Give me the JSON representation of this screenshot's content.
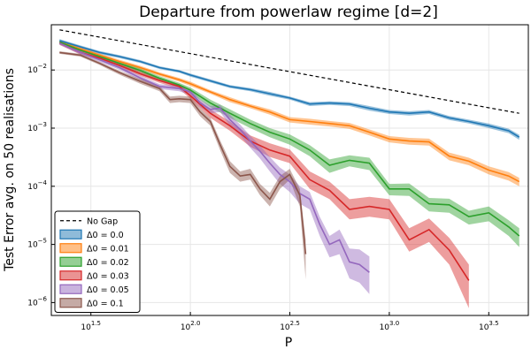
{
  "chart_data": {
    "type": "line",
    "title": "Departure from powerlaw regime [d=2]",
    "xlabel": "P",
    "ylabel": "Test Error avg. on 50 realisations",
    "x_scale": "log10",
    "y_scale": "log10",
    "xlim": [
      20,
      5000
    ],
    "ylim": [
      6e-07,
      0.06
    ],
    "x_ticks": [
      {
        "value": 31.6228,
        "base": "10",
        "exp": "1.5"
      },
      {
        "value": 100,
        "base": "10",
        "exp": "2.0"
      },
      {
        "value": 316.228,
        "base": "10",
        "exp": "2.5"
      },
      {
        "value": 1000,
        "base": "10",
        "exp": "3.0"
      },
      {
        "value": 3162.28,
        "base": "10",
        "exp": "3.5"
      }
    ],
    "y_ticks": [
      {
        "value": 1e-06,
        "base": "10",
        "exp": "−6"
      },
      {
        "value": 1e-05,
        "base": "10",
        "exp": "−5"
      },
      {
        "value": 0.0001,
        "base": "10",
        "exp": "−4"
      },
      {
        "value": 0.001,
        "base": "10",
        "exp": "−3"
      },
      {
        "value": 0.01,
        "base": "10",
        "exp": "−2"
      }
    ],
    "grid": true,
    "legend_position": "bottom-left",
    "reference_line": {
      "name": "No Gap",
      "style": "dashed",
      "color": "#000000",
      "x": [
        22,
        4500
      ],
      "values": [
        0.049,
        0.0018
      ]
    },
    "series": [
      {
        "name": "Δ0 = 0.0",
        "color": "#1f77b4",
        "x": [
          22,
          28,
          35,
          44,
          56,
          70,
          88,
          100,
          126,
          158,
          200,
          251,
          316,
          398,
          501,
          631,
          794,
          1000,
          1259,
          1585,
          2000,
          2512,
          3162,
          3981,
          4500
        ],
        "values": [
          0.032,
          0.025,
          0.02,
          0.017,
          0.014,
          0.011,
          0.0095,
          0.0082,
          0.0065,
          0.0052,
          0.0046,
          0.0039,
          0.0033,
          0.0026,
          0.0027,
          0.0026,
          0.0022,
          0.0019,
          0.0018,
          0.0019,
          0.0015,
          0.0013,
          0.0011,
          0.0009,
          0.0007
        ],
        "lower": [
          0.03,
          0.0235,
          0.0188,
          0.016,
          0.0132,
          0.0104,
          0.009,
          0.0077,
          0.0061,
          0.0049,
          0.0043,
          0.0036,
          0.0031,
          0.0024,
          0.0025,
          0.0024,
          0.002,
          0.00175,
          0.00165,
          0.00175,
          0.00138,
          0.0012,
          0.001,
          0.00082,
          0.00063
        ],
        "upper": [
          0.034,
          0.0265,
          0.0212,
          0.018,
          0.0148,
          0.0116,
          0.01,
          0.0087,
          0.0069,
          0.0055,
          0.0049,
          0.0042,
          0.0035,
          0.0028,
          0.0029,
          0.0028,
          0.0024,
          0.00205,
          0.00195,
          0.00205,
          0.00162,
          0.0014,
          0.0012,
          0.00098,
          0.00077
        ]
      },
      {
        "name": "Δ0 = 0.01",
        "color": "#ff7f0e",
        "x": [
          22,
          28,
          35,
          44,
          56,
          70,
          88,
          100,
          126,
          158,
          200,
          251,
          316,
          398,
          501,
          631,
          794,
          1000,
          1259,
          1585,
          2000,
          2512,
          3162,
          3981,
          4500
        ],
        "values": [
          0.03,
          0.023,
          0.018,
          0.014,
          0.011,
          0.0085,
          0.0068,
          0.0058,
          0.0042,
          0.0031,
          0.0024,
          0.0019,
          0.0014,
          0.0013,
          0.0012,
          0.0011,
          0.00085,
          0.00065,
          0.0006,
          0.00058,
          0.00033,
          0.00027,
          0.00019,
          0.00015,
          0.00012
        ],
        "lower": [
          0.028,
          0.0215,
          0.0168,
          0.013,
          0.0102,
          0.0079,
          0.0063,
          0.0053,
          0.0039,
          0.0028,
          0.0022,
          0.0017,
          0.00125,
          0.00115,
          0.00107,
          0.00097,
          0.00075,
          0.00057,
          0.00052,
          0.0005,
          0.00028,
          0.00023,
          0.00016,
          0.000125,
          0.0001
        ],
        "upper": [
          0.032,
          0.0245,
          0.0192,
          0.015,
          0.0118,
          0.0091,
          0.0073,
          0.0063,
          0.0045,
          0.0034,
          0.0026,
          0.0021,
          0.00155,
          0.00145,
          0.00133,
          0.00123,
          0.00095,
          0.00073,
          0.00068,
          0.00066,
          0.00038,
          0.00031,
          0.00022,
          0.000175,
          0.00014
        ]
      },
      {
        "name": "Δ0 = 0.02",
        "color": "#2ca02c",
        "x": [
          22,
          28,
          35,
          44,
          56,
          70,
          88,
          100,
          126,
          158,
          200,
          251,
          316,
          398,
          501,
          631,
          794,
          1000,
          1259,
          1585,
          2000,
          2512,
          3162,
          3981,
          4500
        ],
        "values": [
          0.03,
          0.022,
          0.017,
          0.013,
          0.0098,
          0.0072,
          0.0055,
          0.0045,
          0.0027,
          0.0018,
          0.0012,
          0.00085,
          0.00065,
          0.00042,
          0.00023,
          0.00028,
          0.00025,
          9e-05,
          9e-05,
          5e-05,
          4.8e-05,
          3e-05,
          3.5e-05,
          2e-05,
          1.4e-05
        ],
        "lower": [
          0.028,
          0.0205,
          0.0158,
          0.012,
          0.009,
          0.0066,
          0.005,
          0.004,
          0.0023,
          0.0015,
          0.001,
          0.0007,
          0.00052,
          0.00033,
          0.00017,
          0.00022,
          0.00019,
          7e-05,
          6.8e-05,
          3.7e-05,
          3.5e-05,
          2.2e-05,
          2.5e-05,
          1.4e-05,
          9e-06
        ],
        "upper": [
          0.032,
          0.0235,
          0.0182,
          0.014,
          0.0106,
          0.0078,
          0.006,
          0.005,
          0.0031,
          0.0021,
          0.0014,
          0.001,
          0.00078,
          0.00051,
          0.00029,
          0.00034,
          0.00031,
          0.00011,
          0.000112,
          6.3e-05,
          6.1e-05,
          3.8e-05,
          4.5e-05,
          2.6e-05,
          1.9e-05
        ]
      },
      {
        "name": "Δ0 = 0.03",
        "color": "#d62728",
        "x": [
          22,
          28,
          35,
          44,
          56,
          70,
          88,
          100,
          126,
          158,
          200,
          251,
          316,
          398,
          501,
          631,
          794,
          1000,
          1259,
          1585,
          2000,
          2512
        ],
        "values": [
          0.029,
          0.02,
          0.016,
          0.012,
          0.0086,
          0.0066,
          0.0052,
          0.0036,
          0.0018,
          0.0011,
          0.0006,
          0.00042,
          0.00033,
          0.00013,
          8.5e-05,
          4e-05,
          4.5e-05,
          4e-05,
          1.2e-05,
          1.8e-05,
          8e-06,
          2.4e-06
        ],
        "lower": [
          0.027,
          0.0185,
          0.0148,
          0.011,
          0.0079,
          0.006,
          0.0047,
          0.0032,
          0.0015,
          0.0009,
          0.00048,
          0.00032,
          0.00025,
          9e-05,
          6e-05,
          2.7e-05,
          3e-05,
          2.7e-05,
          7.5e-06,
          1.1e-05,
          4.5e-06,
          8e-07
        ],
        "upper": [
          0.031,
          0.0215,
          0.0172,
          0.013,
          0.0094,
          0.0072,
          0.0057,
          0.004,
          0.0021,
          0.0013,
          0.00075,
          0.00055,
          0.00043,
          0.00018,
          0.00012,
          6e-05,
          6.6e-05,
          6e-05,
          1.9e-05,
          2.8e-05,
          1.3e-05,
          4.5e-06
        ]
      },
      {
        "name": "Δ0 = 0.05",
        "color": "#9467bd",
        "x": [
          22,
          28,
          35,
          44,
          56,
          70,
          88,
          100,
          112,
          126,
          141,
          158,
          178,
          200,
          224,
          251,
          282,
          316,
          355,
          398,
          447,
          501,
          562,
          631,
          708,
          794
        ],
        "values": [
          0.029,
          0.02,
          0.015,
          0.011,
          0.0073,
          0.0052,
          0.0048,
          0.0042,
          0.0027,
          0.0021,
          0.0022,
          0.0014,
          0.00095,
          0.0006,
          0.0004,
          0.00025,
          0.00016,
          0.00012,
          7.5e-05,
          6e-05,
          2.2e-05,
          1e-05,
          1.2e-05,
          5e-06,
          4.5e-06,
          3.3e-06
        ],
        "lower": [
          0.027,
          0.0185,
          0.0138,
          0.0101,
          0.0067,
          0.0047,
          0.0043,
          0.0037,
          0.0023,
          0.0018,
          0.0019,
          0.0011,
          0.00075,
          0.00046,
          0.0003,
          0.00018,
          0.00011,
          8e-05,
          5e-05,
          4e-05,
          1.4e-05,
          6e-06,
          6.8e-06,
          2.6e-06,
          2.2e-06,
          1.4e-06
        ],
        "upper": [
          0.031,
          0.0215,
          0.0162,
          0.0119,
          0.0079,
          0.0057,
          0.0053,
          0.0047,
          0.0031,
          0.0024,
          0.0025,
          0.0017,
          0.00115,
          0.00074,
          0.0005,
          0.00032,
          0.00021,
          0.00016,
          0.0001,
          8e-05,
          3e-05,
          1.4e-05,
          1.8e-05,
          8.5e-06,
          8.2e-06,
          6.2e-06
        ]
      },
      {
        "name": "Δ0 = 0.1",
        "color": "#8c564b",
        "x": [
          22,
          28,
          35,
          44,
          56,
          70,
          79,
          88,
          100,
          112,
          126,
          141,
          158,
          178,
          200,
          224,
          251,
          282,
          316,
          355,
          380
        ],
        "values": [
          0.02,
          0.018,
          0.013,
          0.009,
          0.0064,
          0.0048,
          0.0031,
          0.0032,
          0.0031,
          0.0019,
          0.0013,
          0.00052,
          0.00022,
          0.00015,
          0.00016,
          9e-05,
          6e-05,
          0.00012,
          0.00016,
          7e-05,
          6.8e-06
        ],
        "lower": [
          0.019,
          0.017,
          0.0122,
          0.0083,
          0.0058,
          0.0043,
          0.0027,
          0.0028,
          0.0027,
          0.0016,
          0.0011,
          0.00042,
          0.00017,
          0.00012,
          0.00013,
          7e-05,
          4.5e-05,
          9e-05,
          0.00013,
          4.5e-05,
          2.5e-06
        ],
        "upper": [
          0.021,
          0.019,
          0.0138,
          0.0097,
          0.007,
          0.0053,
          0.0035,
          0.0036,
          0.0035,
          0.0022,
          0.0015,
          0.00062,
          0.00027,
          0.00018,
          0.0002,
          0.00011,
          7.7e-05,
          0.00015,
          0.0002,
          9e-05,
          1.2e-05
        ]
      }
    ]
  }
}
